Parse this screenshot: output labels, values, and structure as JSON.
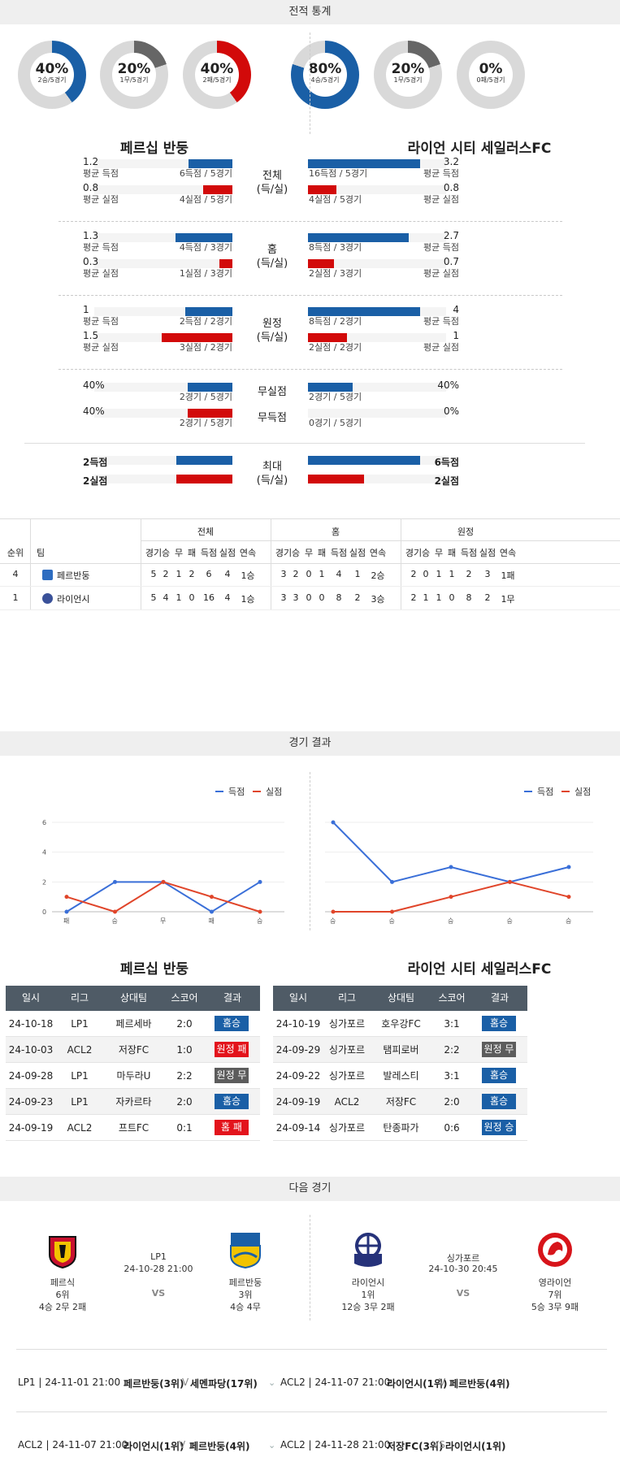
{
  "sections": {
    "stats": "전적 통계",
    "results": "경기 결과",
    "next": "다음 경기"
  },
  "donuts": [
    {
      "pct": "40%",
      "sub": "2승/5경기",
      "value": 0.4,
      "color": "#1a5fa6"
    },
    {
      "pct": "20%",
      "sub": "1무/5경기",
      "value": 0.2,
      "color": "#666666"
    },
    {
      "pct": "40%",
      "sub": "2패/5경기",
      "value": 0.4,
      "color": "#d20a0a"
    },
    {
      "pct": "80%",
      "sub": "4승/5경기",
      "value": 0.8,
      "color": "#1a5fa6"
    },
    {
      "pct": "20%",
      "sub": "1무/5경기",
      "value": 0.2,
      "color": "#666666"
    },
    {
      "pct": "0%",
      "sub": "0패/5경기",
      "value": 0.0,
      "color": "#d20a0a"
    }
  ],
  "teams": {
    "left": "페르십 반둥",
    "right": "라이언 시티 세일러스FC"
  },
  "compare": [
    {
      "cat": "전체",
      "cat2": "(득/실)",
      "left": [
        {
          "num": "1.2",
          "lbl": "평균 득점",
          "cap": "6득점 / 5경기",
          "v": 0.375
        },
        {
          "num": "0.8",
          "lbl": "평균 실점",
          "cap": "4실점 / 5경기",
          "v": 0.25
        }
      ],
      "right": [
        {
          "num": "3.2",
          "lbl": "평균 득점",
          "cap": "16득점 / 5경기",
          "v": 1.0
        },
        {
          "num": "0.8",
          "lbl": "평균 실점",
          "cap": "4실점 / 5경기",
          "v": 0.25
        }
      ]
    },
    {
      "cat": "홈",
      "cat2": "(득/실)",
      "left": [
        {
          "num": "1.3",
          "lbl": "평균 득점",
          "cap": "4득점 / 3경기",
          "v": 0.48
        },
        {
          "num": "0.3",
          "lbl": "평균 실점",
          "cap": "1실점 / 3경기",
          "v": 0.11
        }
      ],
      "right": [
        {
          "num": "2.7",
          "lbl": "평균 득점",
          "cap": "8득점 / 3경기",
          "v": 0.9
        },
        {
          "num": "0.7",
          "lbl": "평균 실점",
          "cap": "2실점 / 3경기",
          "v": 0.23
        }
      ]
    },
    {
      "cat": "원정",
      "cat2": "(득/실)",
      "left": [
        {
          "num": "1",
          "lbl": "평균 득점",
          "cap": "2득점 / 2경기",
          "v": 0.4
        },
        {
          "num": "1.5",
          "lbl": "평균 실점",
          "cap": "3실점 / 2경기",
          "v": 0.6
        }
      ],
      "right": [
        {
          "num": "4",
          "lbl": "평균 득점",
          "cap": "8득점 / 2경기",
          "v": 1.0
        },
        {
          "num": "1",
          "lbl": "평균 실점",
          "cap": "2실점 / 2경기",
          "v": 0.35
        }
      ]
    }
  ],
  "clean": {
    "left": [
      {
        "num": "40%",
        "cap": "2경기 / 5경기",
        "v": 0.4,
        "color": "blue"
      },
      {
        "num": "40%",
        "cap": "2경기 / 5경기",
        "v": 0.4,
        "color": "red"
      }
    ],
    "right": [
      {
        "num": "40%",
        "cap": "2경기 / 5경기",
        "v": 0.4,
        "color": "blue"
      },
      {
        "num": "0%",
        "cap": "0경기 / 5경기",
        "v": 0.0,
        "color": "red"
      }
    ],
    "cats": [
      "무실점",
      "무득점"
    ]
  },
  "max": {
    "cat": "최대",
    "cat2": "(득/실)",
    "left": [
      {
        "num": "2득점",
        "v": 0.5
      },
      {
        "num": "2실점",
        "v": 0.5
      }
    ],
    "right": [
      {
        "num": "6득점",
        "v": 1.0
      },
      {
        "num": "2실점",
        "v": 0.5
      }
    ]
  },
  "standings": {
    "groups": [
      "전체",
      "홈",
      "원정"
    ],
    "rank_h": "순위",
    "team_h": "팀",
    "cols": [
      "경기",
      "승",
      "무",
      "패",
      "득점",
      "실점",
      "연속"
    ],
    "rows": [
      {
        "rank": "4",
        "team": "페르반둥",
        "all": [
          "5",
          "2",
          "1",
          "2",
          "6",
          "4",
          "1승"
        ],
        "home": [
          "3",
          "2",
          "0",
          "1",
          "4",
          "1",
          "2승"
        ],
        "away": [
          "2",
          "0",
          "1",
          "1",
          "2",
          "3",
          "1패"
        ]
      },
      {
        "rank": "1",
        "team": "라이언시",
        "all": [
          "5",
          "4",
          "1",
          "0",
          "16",
          "4",
          "1승"
        ],
        "home": [
          "3",
          "3",
          "0",
          "0",
          "8",
          "2",
          "3승"
        ],
        "away": [
          "2",
          "1",
          "1",
          "0",
          "8",
          "2",
          "1무"
        ]
      }
    ]
  },
  "chart_data": [
    {
      "type": "line",
      "categories": [
        "패",
        "승",
        "무",
        "패",
        "승"
      ],
      "series": [
        {
          "name": "득점",
          "values": [
            0,
            2,
            2,
            0,
            2
          ],
          "color": "#3a6fd8"
        },
        {
          "name": "실점",
          "values": [
            1,
            0,
            2,
            1,
            0
          ],
          "color": "#e0452a"
        }
      ],
      "ylim": [
        0,
        6
      ],
      "yticks": [
        "0",
        "2",
        "4",
        "6"
      ]
    },
    {
      "type": "line",
      "categories": [
        "승",
        "승",
        "승",
        "승",
        "승"
      ],
      "series": [
        {
          "name": "득점",
          "values": [
            6,
            2,
            3,
            2,
            3
          ],
          "color": "#3a6fd8"
        },
        {
          "name": "실점",
          "values": [
            0,
            0,
            1,
            2,
            1
          ],
          "color": "#e0452a"
        }
      ],
      "ylim": [
        0,
        6
      ],
      "yticks": [
        "0",
        "2",
        "4",
        "6"
      ]
    }
  ],
  "results_tables": {
    "headers": [
      "일시",
      "리그",
      "상대팀",
      "스코어",
      "결과"
    ],
    "left": [
      {
        "date": "24-10-18",
        "league": "LP1",
        "opp": "페르세바",
        "score": "2:0",
        "res": "홈승",
        "cls": "b-hw"
      },
      {
        "date": "24-10-03",
        "league": "ACL2",
        "opp": "저장FC",
        "score": "1:0",
        "res": "원정 패",
        "cls": "b-al"
      },
      {
        "date": "24-09-28",
        "league": "LP1",
        "opp": "마두라U",
        "score": "2:2",
        "res": "원정 무",
        "cls": "b-ad"
      },
      {
        "date": "24-09-23",
        "league": "LP1",
        "opp": "자카르타",
        "score": "2:0",
        "res": "홈승",
        "cls": "b-hw"
      },
      {
        "date": "24-09-19",
        "league": "ACL2",
        "opp": "프트FC",
        "score": "0:1",
        "res": "홈 패",
        "cls": "b-hl"
      }
    ],
    "right": [
      {
        "date": "24-10-19",
        "league": "싱가포르",
        "opp": "호우강FC",
        "score": "3:1",
        "res": "홈승",
        "cls": "b-hw"
      },
      {
        "date": "24-09-29",
        "league": "싱가포르",
        "opp": "탬피로버",
        "score": "2:2",
        "res": "원정 무",
        "cls": "b-ad"
      },
      {
        "date": "24-09-22",
        "league": "싱가포르",
        "opp": "발레스티",
        "score": "3:1",
        "res": "홈승",
        "cls": "b-hw"
      },
      {
        "date": "24-09-19",
        "league": "ACL2",
        "opp": "저장FC",
        "score": "2:0",
        "res": "홈승",
        "cls": "b-hw"
      },
      {
        "date": "24-09-14",
        "league": "싱가포르",
        "opp": "탄종파가",
        "score": "0:6",
        "res": "원정 승",
        "cls": "b-hw"
      }
    ]
  },
  "next": {
    "left": {
      "league": "LP1",
      "time": "24-10-28 21:00",
      "vs": "VS",
      "home": {
        "name": "페르식",
        "rank": "6위",
        "rec": "4승 2무 2패"
      },
      "away": {
        "name": "페르반둥",
        "rank": "3위",
        "rec": "4승 4무"
      }
    },
    "right": {
      "league": "싱가포르",
      "time": "24-10-30 20:45",
      "vs": "VS",
      "home": {
        "name": "라이언시",
        "rank": "1위",
        "rec": "12승 3무 2패"
      },
      "away": {
        "name": "영라이언",
        "rank": "7위",
        "rec": "5승 3무 9패"
      }
    }
  },
  "upcoming": [
    {
      "l": "LP1 | 24-11-01 21:00",
      "lm": "페르반둥(3위)",
      "lv": "V",
      "lo": "세멘파당(17위)",
      "r": "ACL2 | 24-11-07 21:00",
      "rm": "라이언시(1위)",
      "rv": "V",
      "ro": "페르반둥(4위)"
    },
    {
      "l": "ACL2 | 24-11-07 21:00",
      "lm": "라이언시(1위)",
      "lv": "V",
      "lo": "페르반둥(4위)",
      "r": "ACL2 | 24-11-28 21:00",
      "rm": "저장FC(3위)",
      "rv": "VS",
      "ro": "라이언시(1위)"
    }
  ]
}
